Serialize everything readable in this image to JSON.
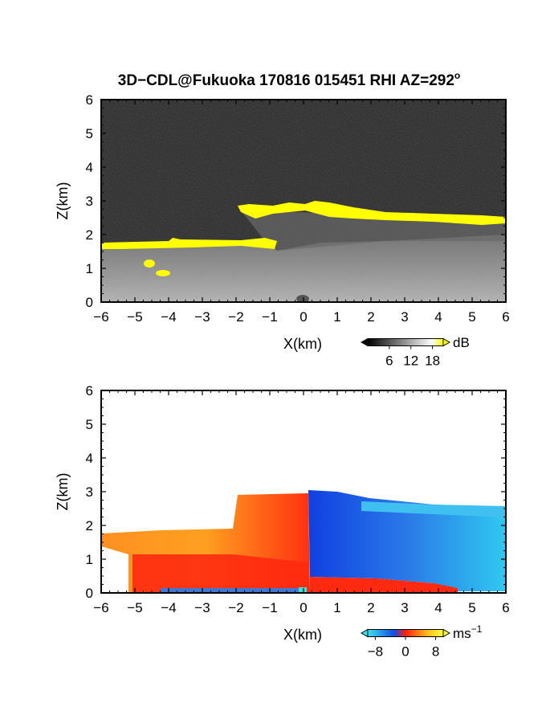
{
  "title": "3D−CDL@Fukuoka 170816 015451 RHI AZ=292",
  "title_sup": "o",
  "chart_data": [
    {
      "type": "heatmap",
      "quantity": "reflectivity",
      "xlabel": "X(km)",
      "ylabel": "Z(km)",
      "xlim": [
        -6,
        6
      ],
      "ylim": [
        0,
        6
      ],
      "xticks": [
        "−6",
        "−5",
        "−4",
        "−3",
        "−2",
        "−1",
        "0",
        "1",
        "2",
        "3",
        "4",
        "5",
        "6"
      ],
      "yticks": [
        "0",
        "1",
        "2",
        "3",
        "4",
        "5",
        "6"
      ],
      "colorbar": {
        "unit": "dB",
        "ticks": [
          "6",
          "12",
          "18"
        ],
        "range": [
          0,
          21
        ],
        "colors": [
          "#000000",
          "#ffffff",
          "#ffff00"
        ]
      },
      "features": [
        {
          "name": "cloud base layer (strong echo)",
          "x": [
            -6,
            -1
          ],
          "z": [
            1.55,
            1.9
          ]
        },
        {
          "name": "cloud layer (strong echo)",
          "x": [
            -1.9,
            6
          ],
          "z": [
            2.3,
            2.95
          ]
        },
        {
          "name": "isolated echoes",
          "x": [
            -5,
            -4
          ],
          "z": [
            0.8,
            1.2
          ]
        }
      ],
      "colors": {
        "background_noise": "#202020"
      }
    },
    {
      "type": "heatmap",
      "quantity": "doppler velocity",
      "xlabel": "X(km)",
      "ylabel": "Z(km)",
      "xlim": [
        -6,
        6
      ],
      "ylim": [
        0,
        6
      ],
      "xticks": [
        "−6",
        "−5",
        "−4",
        "−3",
        "−2",
        "−1",
        "0",
        "1",
        "2",
        "3",
        "4",
        "5",
        "6"
      ],
      "yticks": [
        "0",
        "1",
        "2",
        "3",
        "4",
        "5",
        "6"
      ],
      "colorbar": {
        "unit": "ms",
        "unit_sup": "−1",
        "ticks": [
          "−8",
          "0",
          "8"
        ],
        "range": [
          -10,
          10
        ],
        "colors": [
          "#40e0f0",
          "#1050e0",
          "#ff2010",
          "#ffc020",
          "#ffff40"
        ]
      },
      "features": [
        {
          "name": "positive velocity (west of 0.2 km)",
          "x": [
            -6,
            0.2
          ],
          "z": [
            0,
            2.9
          ],
          "approx_value": 6
        },
        {
          "name": "negative velocity (east of 0.2 km)",
          "x": [
            0.2,
            6
          ],
          "z": [
            0,
            3.0
          ],
          "approx_value": -6
        }
      ]
    }
  ]
}
